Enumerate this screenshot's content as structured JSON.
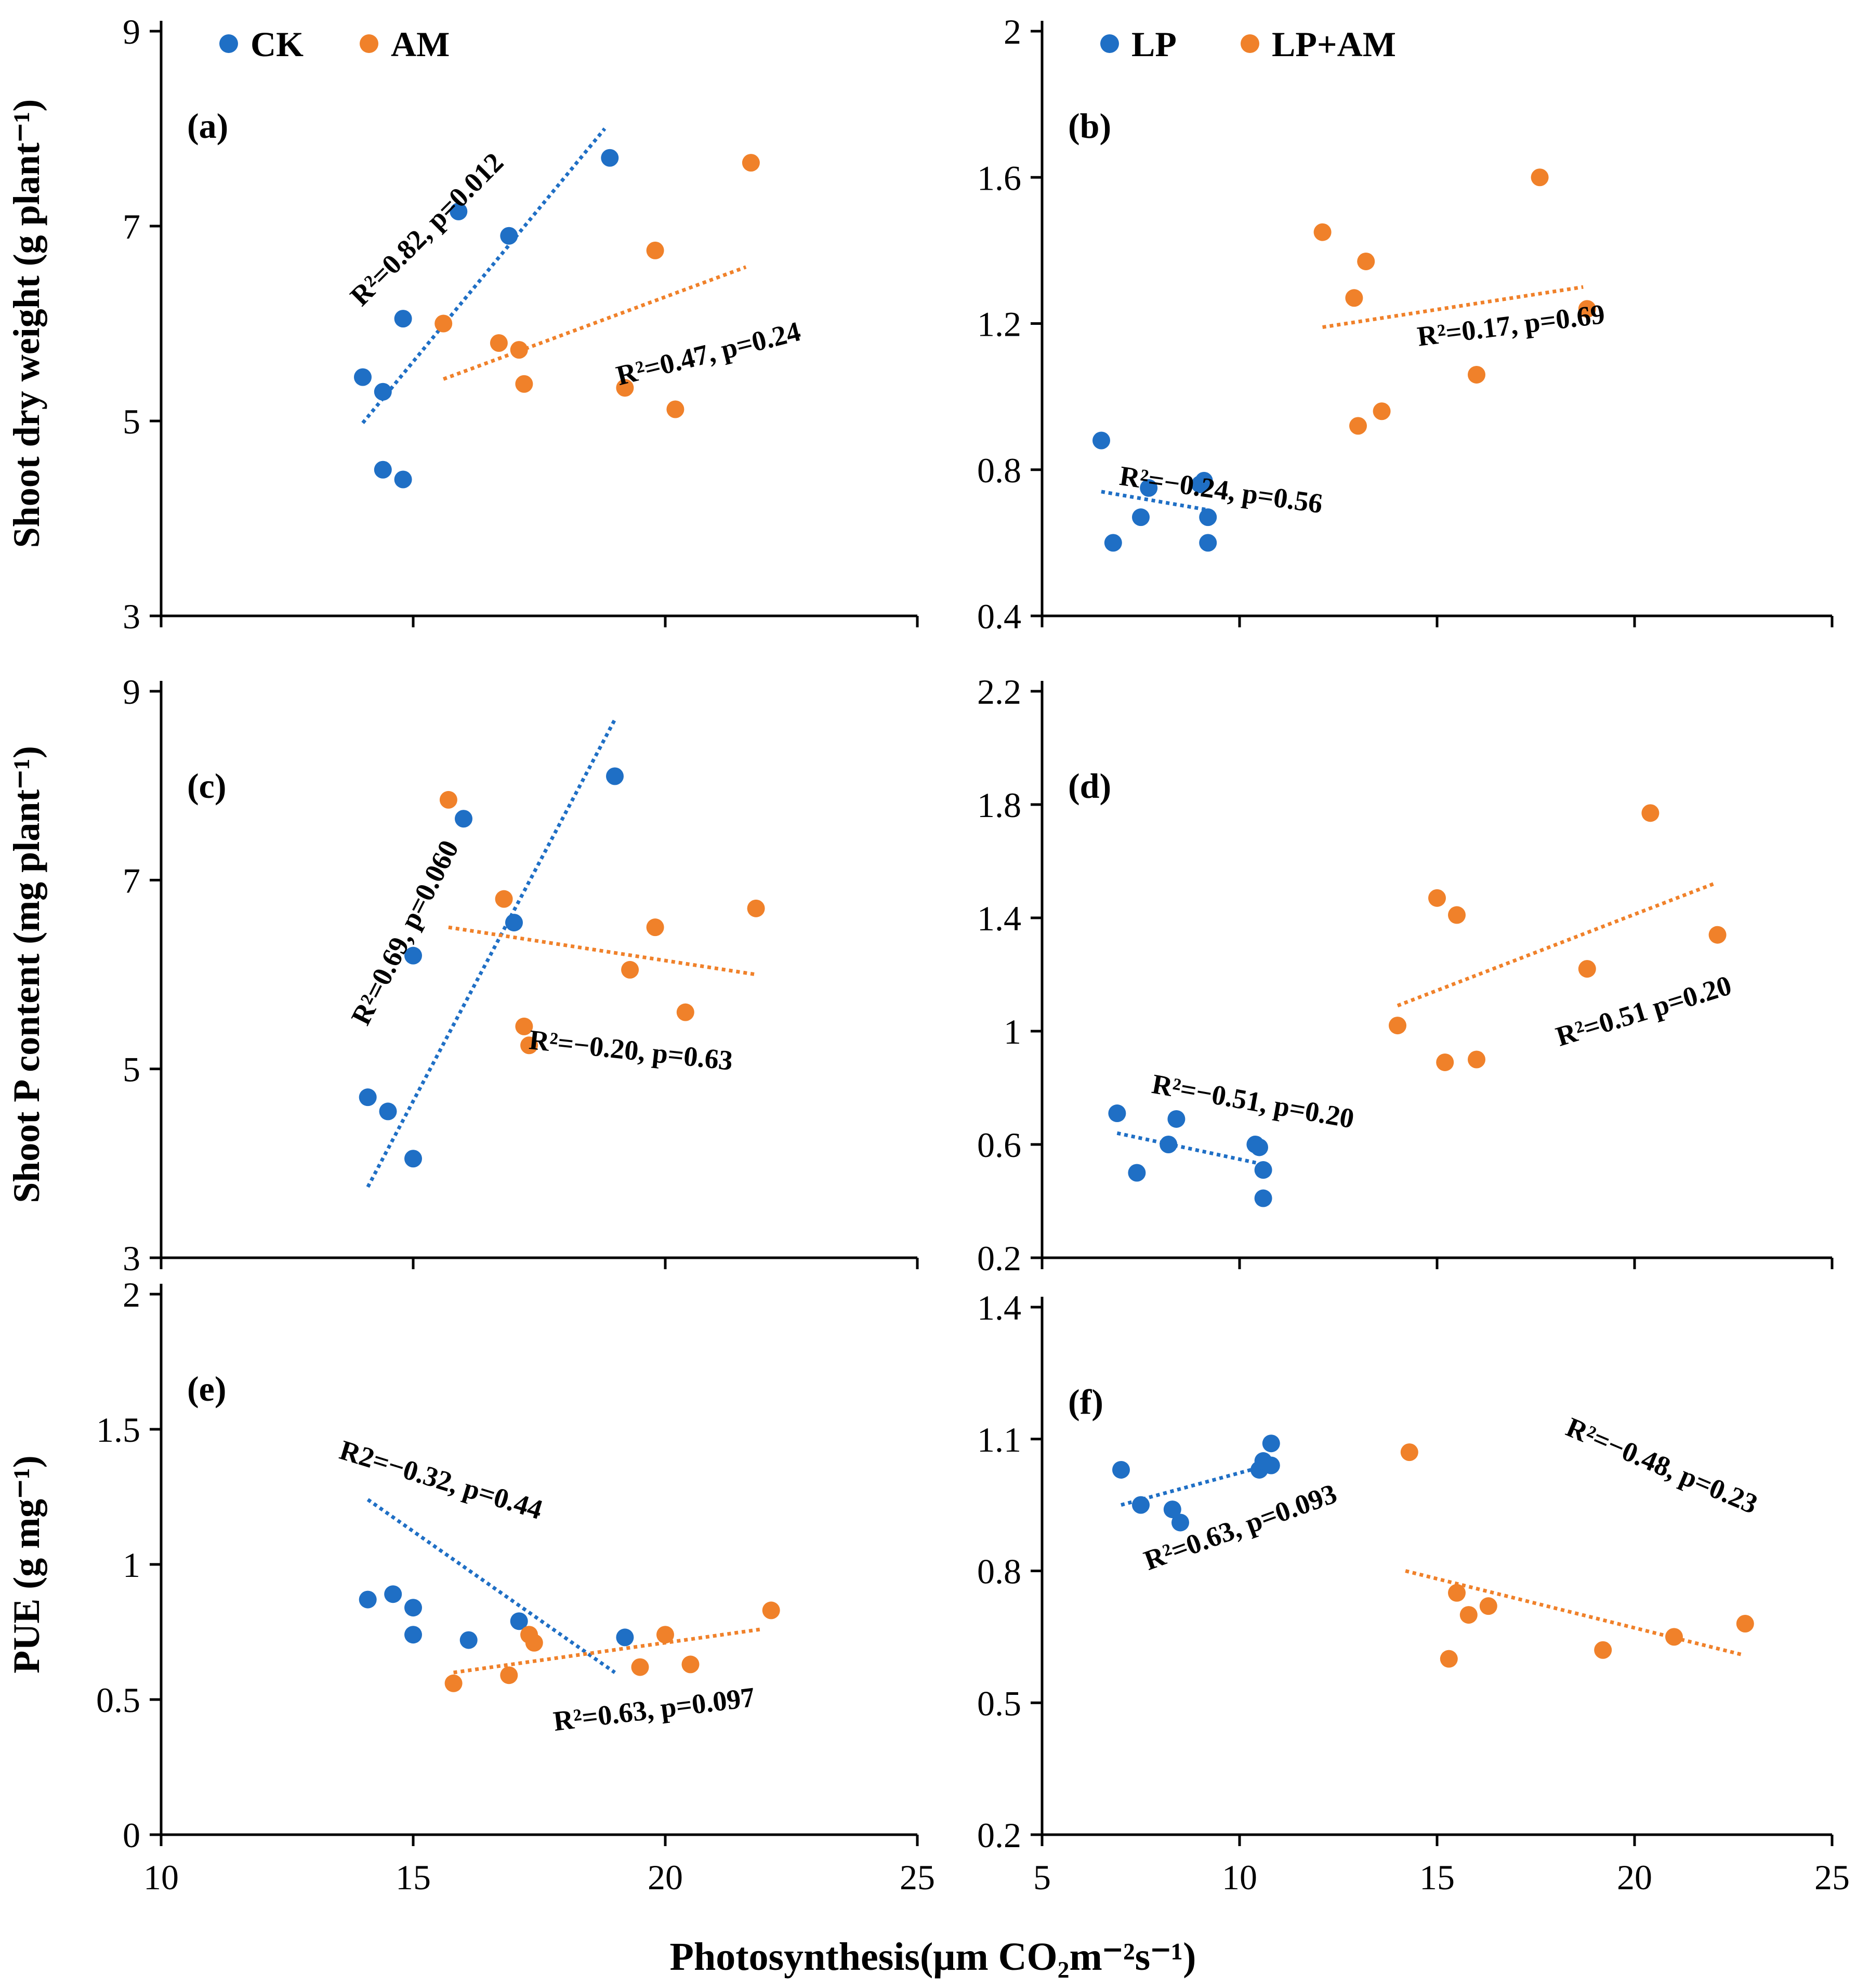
{
  "colors": {
    "series1": "#1f6fc5",
    "series2": "#f0812a",
    "axis": "#000000"
  },
  "shared": {
    "xlabel": "Photosynthesis(μm CO₂m⁻²s⁻¹)"
  },
  "chart_data": [
    {
      "panel": "(a)",
      "type": "scatter",
      "ylabel": "Shoot dry weight (g plant⁻¹)",
      "xlim": [
        10,
        25
      ],
      "ylim": [
        3,
        9
      ],
      "xticks": [],
      "yticks": [
        "3",
        "5",
        "7",
        "9"
      ],
      "legend": [
        "CK",
        "AM"
      ],
      "series": [
        {
          "name": "CK",
          "color": "#1f6fc5",
          "points": [
            [
              14,
              5.45
            ],
            [
              14.4,
              5.3
            ],
            [
              14.4,
              4.5
            ],
            [
              14.8,
              4.4
            ],
            [
              14.8,
              6.05
            ],
            [
              15.9,
              7.15
            ],
            [
              16.9,
              6.9
            ],
            [
              18.9,
              7.7
            ]
          ],
          "trend": [
            [
              14,
              4.98
            ],
            [
              18.8,
              8.0
            ]
          ],
          "annotation": "R²=0.82, p=0.012"
        },
        {
          "name": "AM",
          "color": "#f0812a",
          "points": [
            [
              15.6,
              6.0
            ],
            [
              16.7,
              5.8
            ],
            [
              17.1,
              5.73
            ],
            [
              17.2,
              5.38
            ],
            [
              19.2,
              5.34
            ],
            [
              19.8,
              6.75
            ],
            [
              20.2,
              5.12
            ],
            [
              21.7,
              7.65
            ]
          ],
          "trend": [
            [
              15.6,
              5.43
            ],
            [
              21.6,
              6.58
            ]
          ],
          "annotation": "R²=0.47, p=0.24"
        }
      ]
    },
    {
      "panel": "(b)",
      "type": "scatter",
      "ylabel": "",
      "xlim": [
        5,
        25
      ],
      "ylim": [
        0.4,
        2
      ],
      "xticks": [],
      "yticks": [
        "0.4",
        "0.8",
        "1.2",
        "1.6",
        "2"
      ],
      "legend": [
        "LP",
        "LP+AM"
      ],
      "series": [
        {
          "name": "LP",
          "color": "#1f6fc5",
          "points": [
            [
              6.5,
              0.88
            ],
            [
              6.8,
              0.6
            ],
            [
              7.5,
              0.67
            ],
            [
              7.7,
              0.75
            ],
            [
              9.0,
              0.76
            ],
            [
              9.1,
              0.77
            ],
            [
              9.2,
              0.67
            ],
            [
              9.2,
              0.6
            ]
          ],
          "trend": [
            [
              6.5,
              0.74
            ],
            [
              9.2,
              0.69
            ]
          ],
          "annotation": "R²=−0.24, p=0.56"
        },
        {
          "name": "LP+AM",
          "color": "#f0812a",
          "points": [
            [
              12.1,
              1.45
            ],
            [
              12.9,
              1.27
            ],
            [
              13.0,
              0.92
            ],
            [
              13.2,
              1.37
            ],
            [
              13.6,
              0.96
            ],
            [
              16.0,
              1.06
            ],
            [
              17.6,
              1.6
            ],
            [
              18.8,
              1.24
            ]
          ],
          "trend": [
            [
              12.1,
              1.19
            ],
            [
              18.7,
              1.3
            ]
          ],
          "annotation": "R²=0.17, p=0.69"
        }
      ]
    },
    {
      "panel": "(c)",
      "type": "scatter",
      "ylabel": "Shoot P content (mg plant⁻¹)",
      "xlim": [
        10,
        25
      ],
      "ylim": [
        3,
        9
      ],
      "xticks": [],
      "yticks": [
        "3",
        "5",
        "7",
        "9"
      ],
      "legend": [],
      "series": [
        {
          "name": "CK",
          "color": "#1f6fc5",
          "points": [
            [
              14.1,
              4.7
            ],
            [
              14.5,
              4.55
            ],
            [
              15.0,
              6.2
            ],
            [
              15.0,
              4.05
            ],
            [
              16.0,
              7.65
            ],
            [
              17.0,
              6.55
            ],
            [
              19.0,
              8.1
            ]
          ],
          "trend": [
            [
              14.1,
              3.75
            ],
            [
              19.0,
              8.7
            ]
          ],
          "annotation": "R²=0.69, p=0.060"
        },
        {
          "name": "AM",
          "color": "#f0812a",
          "points": [
            [
              15.7,
              7.85
            ],
            [
              16.8,
              6.8
            ],
            [
              17.2,
              5.45
            ],
            [
              17.3,
              5.25
            ],
            [
              19.3,
              6.05
            ],
            [
              19.8,
              6.5
            ],
            [
              20.4,
              5.6
            ],
            [
              21.8,
              6.7
            ]
          ],
          "trend": [
            [
              15.7,
              6.5
            ],
            [
              21.8,
              6.0
            ]
          ],
          "annotation": "R²=−0.20, p=0.63"
        }
      ]
    },
    {
      "panel": "(d)",
      "type": "scatter",
      "ylabel": "",
      "xlim": [
        5,
        25
      ],
      "ylim": [
        0.2,
        2.2
      ],
      "xticks": [],
      "yticks": [
        "0.2",
        "0.6",
        "1",
        "1.4",
        "1.8",
        "2.2"
      ],
      "legend": [],
      "series": [
        {
          "name": "LP",
          "color": "#1f6fc5",
          "points": [
            [
              6.9,
              0.71
            ],
            [
              7.4,
              0.5
            ],
            [
              8.2,
              0.6
            ],
            [
              8.4,
              0.69
            ],
            [
              10.4,
              0.6
            ],
            [
              10.5,
              0.59
            ],
            [
              10.6,
              0.51
            ],
            [
              10.6,
              0.41
            ]
          ],
          "trend": [
            [
              6.9,
              0.64
            ],
            [
              10.6,
              0.53
            ]
          ],
          "annotation": "R²=−0.51, p=0.20"
        },
        {
          "name": "LP+AM",
          "color": "#f0812a",
          "points": [
            [
              14.0,
              1.02
            ],
            [
              15.0,
              1.47
            ],
            [
              15.2,
              0.89
            ],
            [
              15.5,
              1.41
            ],
            [
              16.0,
              0.9
            ],
            [
              18.8,
              1.22
            ],
            [
              20.4,
              1.77
            ],
            [
              22.1,
              1.34
            ]
          ],
          "trend": [
            [
              14.0,
              1.09
            ],
            [
              22.0,
              1.52
            ]
          ],
          "annotation": "R²=0.51 p=0.20"
        }
      ]
    },
    {
      "panel": "(e)",
      "type": "scatter",
      "ylabel": "PUE (g mg⁻¹)",
      "xlim": [
        10,
        25
      ],
      "ylim": [
        0,
        2
      ],
      "xticks": [
        "10",
        "15",
        "20",
        "25"
      ],
      "yticks": [
        "0",
        "0.5",
        "1",
        "1.5",
        "2"
      ],
      "legend": [],
      "series": [
        {
          "name": "CK",
          "color": "#1f6fc5",
          "points": [
            [
              14.1,
              0.87
            ],
            [
              14.6,
              0.89
            ],
            [
              15.0,
              0.84
            ],
            [
              15.0,
              0.74
            ],
            [
              16.1,
              0.72
            ],
            [
              17.1,
              0.79
            ],
            [
              19.2,
              0.73
            ]
          ],
          "trend": [
            [
              14.1,
              1.24
            ],
            [
              19.0,
              0.6
            ]
          ],
          "annotation": "R2=−0.32, p=0.44"
        },
        {
          "name": "AM",
          "color": "#f0812a",
          "points": [
            [
              15.8,
              0.56
            ],
            [
              16.9,
              0.59
            ],
            [
              17.3,
              0.74
            ],
            [
              17.4,
              0.71
            ],
            [
              19.5,
              0.62
            ],
            [
              20.0,
              0.74
            ],
            [
              20.5,
              0.63
            ],
            [
              22.1,
              0.83
            ]
          ],
          "trend": [
            [
              15.8,
              0.6
            ],
            [
              21.9,
              0.76
            ]
          ],
          "annotation": "R²=0.63, p=0.097"
        }
      ]
    },
    {
      "panel": "(f)",
      "type": "scatter",
      "ylabel": "",
      "xlim": [
        5,
        25
      ],
      "ylim": [
        0.2,
        1.4
      ],
      "xticks": [
        "5",
        "10",
        "15",
        "20",
        "25"
      ],
      "yticks": [
        "0.2",
        "0.5",
        "0.8",
        "1.1",
        "1.4"
      ],
      "legend": [],
      "series": [
        {
          "name": "LP",
          "color": "#1f6fc5",
          "points": [
            [
              7.0,
              1.03
            ],
            [
              7.5,
              0.95
            ],
            [
              8.3,
              0.94
            ],
            [
              8.5,
              0.91
            ],
            [
              10.5,
              1.03
            ],
            [
              10.6,
              1.05
            ],
            [
              10.8,
              1.04
            ],
            [
              10.8,
              1.09
            ]
          ],
          "trend": [
            [
              7.0,
              0.95
            ],
            [
              10.7,
              1.04
            ]
          ],
          "annotation": "R²=0.63, p=0.093"
        },
        {
          "name": "LP+AM",
          "color": "#f0812a",
          "points": [
            [
              14.3,
              1.07
            ],
            [
              15.3,
              0.6
            ],
            [
              15.5,
              0.75
            ],
            [
              15.8,
              0.7
            ],
            [
              16.3,
              0.72
            ],
            [
              19.2,
              0.62
            ],
            [
              21.0,
              0.65
            ],
            [
              22.8,
              0.68
            ]
          ],
          "trend": [
            [
              14.2,
              0.8
            ],
            [
              22.7,
              0.61
            ]
          ],
          "annotation": "R²=−0.48, p=0.23"
        }
      ]
    }
  ]
}
